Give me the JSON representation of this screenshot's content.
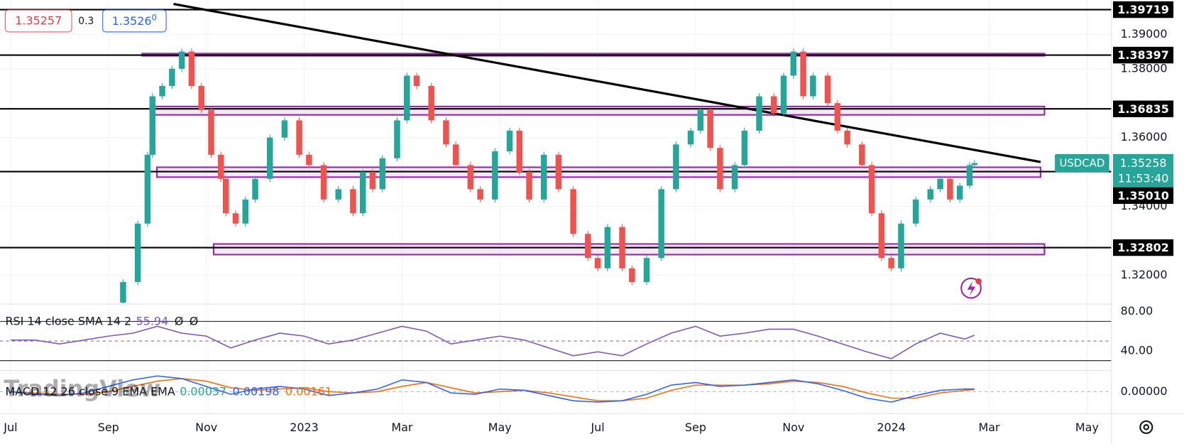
{
  "chart_data": {
    "type": "candlestick",
    "x": [
      2.0,
      2.3,
      2.6,
      2.8,
      2.9,
      3.1,
      3.3,
      3.5,
      3.7,
      3.9,
      4.1,
      4.3,
      4.4,
      4.6,
      4.8,
      5.0,
      5.3,
      5.6,
      5.9,
      6.1,
      6.4,
      6.7,
      7.0,
      7.2,
      7.4,
      7.6,
      7.9,
      8.1,
      8.3,
      8.6,
      8.9,
      9.1,
      9.4,
      9.6,
      9.9,
      10.2,
      10.4,
      10.6,
      10.9,
      11.2,
      11.5,
      11.8,
      12.0,
      12.2,
      12.5,
      12.7,
      13.0,
      13.3,
      13.6,
      13.9,
      14.1,
      14.3,
      14.5,
      14.8,
      15.0,
      15.3,
      15.6,
      15.8,
      16.0,
      16.2,
      16.4,
      16.7,
      16.9,
      17.1,
      17.4,
      17.6,
      17.8,
      18.0,
      18.2,
      18.5,
      18.8,
      19.0,
      19.2,
      19.4,
      19.6,
      19.7
    ],
    "series": [
      {
        "name": "USDCAD",
        "up_color": "#26a69a",
        "down_color": "#ef5350",
        "values": [
          1.312,
          1.318,
          1.335,
          1.355,
          1.372,
          1.375,
          1.38,
          1.385,
          1.375,
          1.368,
          1.355,
          1.348,
          1.338,
          1.335,
          1.342,
          1.348,
          1.36,
          1.365,
          1.355,
          1.352,
          1.342,
          1.345,
          1.338,
          1.35,
          1.345,
          1.354,
          1.365,
          1.378,
          1.375,
          1.365,
          1.358,
          1.352,
          1.345,
          1.342,
          1.356,
          1.362,
          1.35,
          1.342,
          1.355,
          1.345,
          1.332,
          1.325,
          1.322,
          1.334,
          1.322,
          1.318,
          1.325,
          1.345,
          1.358,
          1.362,
          1.368,
          1.357,
          1.345,
          1.352,
          1.362,
          1.372,
          1.367,
          1.378,
          1.385,
          1.372,
          1.378,
          1.37,
          1.362,
          1.358,
          1.352,
          1.338,
          1.325,
          1.322,
          1.335,
          1.342,
          1.345,
          1.348,
          1.342,
          1.346,
          1.352,
          1.35258
        ]
      }
    ],
    "xlim": [
      -0.216,
      22.5
    ],
    "xticks": [
      {
        "value": 0,
        "label": "Jul"
      },
      {
        "value": 2,
        "label": "Sep"
      },
      {
        "value": 4,
        "label": "Nov"
      },
      {
        "value": 6,
        "label": "2023"
      },
      {
        "value": 8,
        "label": "Mar"
      },
      {
        "value": 10,
        "label": "May"
      },
      {
        "value": 12,
        "label": "Jul"
      },
      {
        "value": 14,
        "label": "Sep"
      },
      {
        "value": 16,
        "label": "Nov"
      },
      {
        "value": 18,
        "label": "2024"
      },
      {
        "value": 20,
        "label": "Mar"
      },
      {
        "value": 22,
        "label": "May"
      }
    ],
    "ylim": [
      1.31163,
      1.39993
    ],
    "yticks": [
      {
        "value": 1.39,
        "label": "1.39000"
      },
      {
        "value": 1.38,
        "label": "1.38000"
      },
      {
        "value": 1.36,
        "label": "1.36000"
      },
      {
        "value": 1.34,
        "label": "1.34000"
      },
      {
        "value": 1.32,
        "label": "1.32000"
      }
    ],
    "grid": true,
    "last_price": 1.35258,
    "countdown": "11:53:40",
    "quote": {
      "bid": 1.35257,
      "spread": 0.3,
      "ask_label": "1.3526",
      "ask_pipette": "0"
    },
    "levels": [
      1.39719,
      1.38397,
      1.36835,
      {
        "value": 1.3501,
        "label": "1.35010"
      },
      1.32802
    ],
    "zones": [
      {
        "x": [
          2.69,
          21.13
        ],
        "y": [
          1.38376,
          1.38442
        ]
      },
      {
        "x": [
          2.92,
          21.13
        ],
        "y": [
          1.3666,
          1.36903
        ]
      },
      {
        "x": [
          2.99,
          21.05
        ],
        "y": [
          1.3485,
          1.35137
        ]
      },
      {
        "x": [
          4.15,
          21.13
        ],
        "y": [
          1.32598,
          1.32907
        ]
      }
    ],
    "trendline": {
      "x": [
        3.33,
        21.05
      ],
      "y": [
        1.39883,
        1.35291
      ]
    },
    "rsi": {
      "title": "RSI 14 close SMA 14 2",
      "color": "#7e57c2",
      "extra_labels": [
        "Ø",
        "Ø"
      ],
      "x": [
        0,
        0.5,
        1,
        1.5,
        2,
        2.5,
        3,
        3.5,
        4,
        4.5,
        5,
        5.5,
        6,
        6.5,
        7,
        7.5,
        8,
        8.5,
        9,
        9.5,
        10,
        10.5,
        11,
        11.5,
        12,
        12.5,
        13,
        13.5,
        14,
        14.5,
        15,
        15.5,
        16,
        16.5,
        17,
        17.5,
        18,
        18.5,
        19,
        19.5,
        19.7
      ],
      "values": [
        51,
        51,
        47,
        51,
        55,
        58,
        65,
        58,
        55,
        43,
        51,
        58,
        55,
        47,
        51,
        58,
        65,
        60,
        47,
        51,
        55,
        51,
        43,
        35,
        39,
        35,
        47,
        58,
        65,
        55,
        58,
        62,
        62,
        55,
        47,
        39,
        32,
        47,
        58,
        52,
        55.94
      ],
      "ylim": [
        20,
        87.7
      ],
      "yticks": [
        {
          "value": 80,
          "label": "80.00"
        },
        {
          "value": 40,
          "label": "40.00"
        }
      ],
      "bands": [
        70,
        30
      ],
      "midline": 50
    },
    "macd": {
      "title": "MACD 12 26 close 9 EMA EMA",
      "histogram_last": 0.00037,
      "macd_color": "#2962ff",
      "signal_color": "#ff6d00",
      "x": [
        0,
        0.5,
        1,
        1.5,
        2,
        2.5,
        3,
        3.5,
        4,
        4.5,
        5,
        5.5,
        6,
        6.5,
        7,
        7.5,
        8,
        8.5,
        9,
        9.5,
        10,
        10.5,
        11,
        11.5,
        12,
        12.5,
        13,
        13.5,
        14,
        14.5,
        15,
        15.5,
        16,
        16.5,
        17,
        17.5,
        18,
        18.5,
        19,
        19.5,
        19.7
      ],
      "macd_values": [
        0,
        -0.002,
        -0.003,
        -0.001,
        0.004,
        0.009,
        0.012,
        0.01,
        0.004,
        -0.002,
        0.002,
        0.004,
        0.002,
        -0.003,
        -0.001,
        0.002,
        0.009,
        0.007,
        -0.001,
        -0.002,
        0.002,
        0.001,
        -0.003,
        -0.007,
        -0.008,
        -0.007,
        -0.002,
        0.005,
        0.007,
        0.004,
        0.005,
        0.007,
        0.009,
        0.006,
        0.001,
        -0.005,
        -0.008,
        -0.003,
        0.001,
        0.002,
        0.00198
      ],
      "signal_values": [
        0,
        -0.001,
        -0.002,
        -0.002,
        0,
        0.004,
        0.008,
        0.01,
        0.008,
        0.003,
        0.001,
        0.002,
        0.003,
        0,
        -0.001,
        0,
        0.004,
        0.007,
        0.003,
        -0.001,
        0,
        0.001,
        -0.001,
        -0.004,
        -0.007,
        -0.007,
        -0.005,
        0.001,
        0.005,
        0.005,
        0.005,
        0.006,
        0.008,
        0.007,
        0.004,
        -0.001,
        -0.005,
        -0.005,
        -0.001,
        0.001,
        0.00161
      ],
      "ylim": [
        -0.0168,
        0.0162
      ],
      "yticks": [
        {
          "value": 0,
          "label": "0.00000"
        }
      ]
    },
    "watermark": "TradingView"
  }
}
